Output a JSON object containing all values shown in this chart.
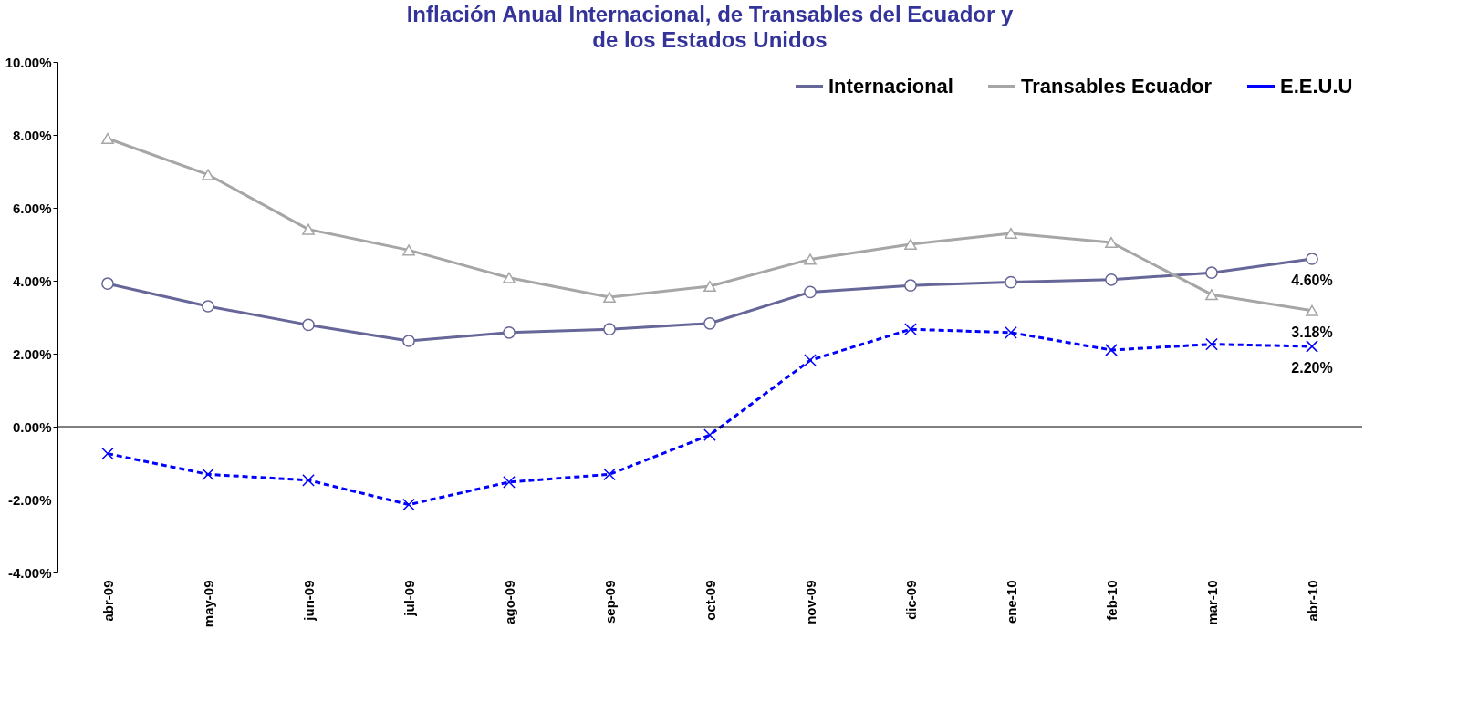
{
  "chart_data": {
    "type": "line",
    "title": "Inflación Anual Internacional, de Transables del Ecuador  y de los Estados Unidos",
    "categories": [
      "abr-09",
      "may-09",
      "jun-09",
      "jul-09",
      "ago-09",
      "sep-09",
      "oct-09",
      "nov-09",
      "dic-09",
      "ene-10",
      "feb-10",
      "mar-10",
      "abr-10"
    ],
    "series": [
      {
        "name": "Internacional",
        "color": "#666699",
        "marker": "circle",
        "line_style": "solid",
        "values": [
          3.92,
          3.3,
          2.79,
          2.35,
          2.58,
          2.67,
          2.83,
          3.69,
          3.87,
          3.96,
          4.03,
          4.22,
          4.6
        ],
        "value_labels": [
          null,
          null,
          null,
          null,
          null,
          null,
          null,
          null,
          null,
          null,
          null,
          null,
          "4.60%"
        ]
      },
      {
        "name": "Transables Ecuador",
        "color": "#a6a6a6",
        "marker": "triangle",
        "line_style": "solid",
        "values": [
          7.9,
          6.91,
          5.41,
          4.84,
          4.08,
          3.55,
          3.85,
          4.59,
          5.0,
          5.3,
          5.05,
          3.62,
          3.18
        ],
        "value_labels": [
          null,
          null,
          null,
          null,
          null,
          null,
          null,
          null,
          null,
          null,
          null,
          null,
          "3.18%"
        ]
      },
      {
        "name": "E.E.U.U",
        "color": "#0000ff",
        "marker": "cross",
        "line_style": "dashed",
        "values": [
          -0.74,
          -1.31,
          -1.47,
          -2.14,
          -1.52,
          -1.31,
          -0.23,
          1.82,
          2.67,
          2.58,
          2.1,
          2.26,
          2.2
        ],
        "value_labels": [
          null,
          null,
          null,
          null,
          null,
          null,
          null,
          null,
          null,
          null,
          null,
          null,
          "2.20%"
        ]
      }
    ],
    "ylim": [
      -4,
      10
    ],
    "yticks": [
      {
        "value": -4,
        "label": "-4.00%"
      },
      {
        "value": -2,
        "label": "-2.00%"
      },
      {
        "value": 0,
        "label": "0.00%"
      },
      {
        "value": 2,
        "label": "2.00%"
      },
      {
        "value": 4,
        "label": "4.00%"
      },
      {
        "value": 6,
        "label": "6.00%"
      },
      {
        "value": 8,
        "label": "8.00%"
      },
      {
        "value": 10,
        "label": "10.00%"
      }
    ],
    "grid": false,
    "ref_lines": [
      {
        "axis": "y",
        "value": 0,
        "color": "#000000",
        "line_style": "solid"
      }
    ],
    "legend": "top right"
  }
}
